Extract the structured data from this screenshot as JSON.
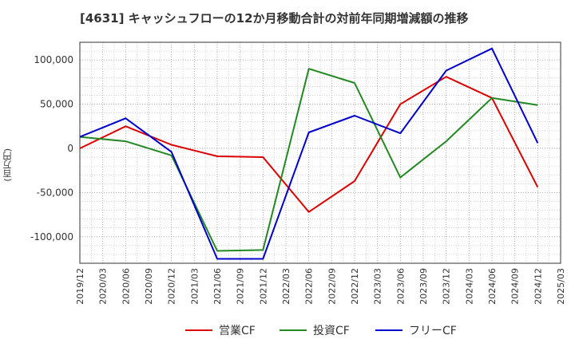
{
  "chart_data": {
    "type": "line",
    "title": "[4631]  キャッシュフローの12か月移動合計の対前年同期増減額の推移",
    "ylabel": "(百万円)",
    "xlabel": "",
    "ylim": [
      -130000,
      120000
    ],
    "y_ticks": [
      100000,
      50000,
      0,
      -50000,
      -100000
    ],
    "y_tick_labels": [
      "100,000",
      "50,000",
      "0",
      "-50,000",
      "-100,000"
    ],
    "x_labels": [
      "2019/12",
      "2020/03",
      "2020/06",
      "2020/09",
      "2020/12",
      "2021/03",
      "2021/06",
      "2021/09",
      "2021/12",
      "2022/03",
      "2022/06",
      "2022/09",
      "2022/12",
      "2023/03",
      "2023/06",
      "2023/09",
      "2023/12",
      "2024/03",
      "2024/06",
      "2024/09",
      "2024/12",
      "2025/03"
    ],
    "grid": true,
    "legend_position": "bottom",
    "series": [
      {
        "name": "営業CF",
        "color": "#dd0000",
        "points": [
          [
            0,
            0
          ],
          [
            2,
            25000
          ],
          [
            4,
            4000
          ],
          [
            6,
            -9000
          ],
          [
            8,
            -10000
          ],
          [
            10,
            -72000
          ],
          [
            12,
            -37000
          ],
          [
            14,
            50000
          ],
          [
            16,
            81000
          ],
          [
            18,
            57000
          ],
          [
            20,
            -44000
          ]
        ]
      },
      {
        "name": "投資CF",
        "color": "#228822",
        "points": [
          [
            0,
            13000
          ],
          [
            2,
            8000
          ],
          [
            4,
            -8000
          ],
          [
            6,
            -116000
          ],
          [
            8,
            -115000
          ],
          [
            10,
            90000
          ],
          [
            12,
            74000
          ],
          [
            14,
            -33000
          ],
          [
            16,
            8000
          ],
          [
            18,
            57000
          ],
          [
            20,
            49000
          ]
        ]
      },
      {
        "name": "フリーCF",
        "color": "#0000cc",
        "points": [
          [
            0,
            13000
          ],
          [
            2,
            34000
          ],
          [
            4,
            -4000
          ],
          [
            6,
            -125000
          ],
          [
            8,
            -125000
          ],
          [
            10,
            18000
          ],
          [
            12,
            37000
          ],
          [
            14,
            17000
          ],
          [
            16,
            88000
          ],
          [
            18,
            113000
          ],
          [
            20,
            6000
          ]
        ]
      }
    ]
  }
}
